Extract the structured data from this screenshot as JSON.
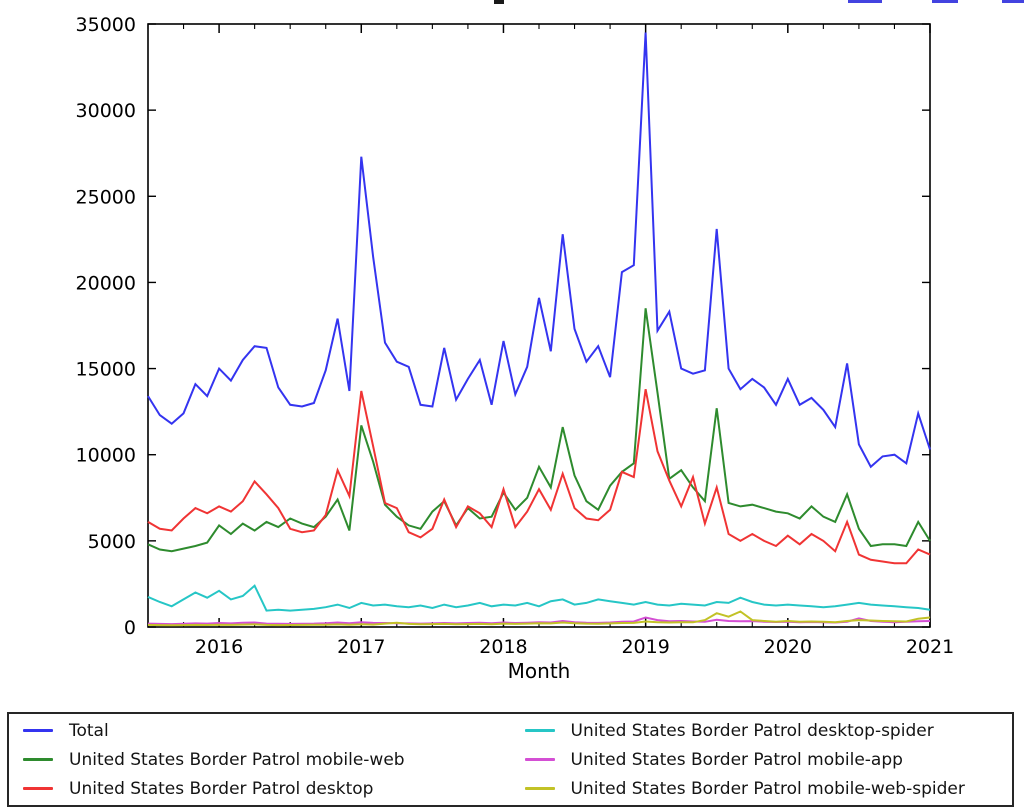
{
  "top_edge": {
    "title_fragment_color": "#1a1a1a",
    "link_fragment_color": "#4343e0"
  },
  "chart_data": {
    "type": "line",
    "title": "",
    "xlabel": "Month",
    "ylabel": "",
    "grid": false,
    "legend_position": "bottom",
    "ylim": [
      0,
      35000
    ],
    "y_ticks": [
      0,
      5000,
      10000,
      15000,
      20000,
      25000,
      30000,
      35000
    ],
    "x_tick_years": [
      2016,
      2017,
      2018,
      2019,
      2020,
      2021
    ],
    "x_start_month": "2015-07",
    "x_end_month": "2021-01",
    "x_months": 67,
    "series": [
      {
        "name": "Total",
        "color": "#3434f0",
        "values": [
          13400,
          12300,
          11800,
          12400,
          14100,
          13400,
          15000,
          14300,
          15500,
          16300,
          16200,
          13900,
          12900,
          12800,
          13000,
          14900,
          17900,
          13700,
          27300,
          21500,
          16500,
          15400,
          15100,
          12900,
          12800,
          16200,
          13200,
          14400,
          15500,
          12900,
          16600,
          13500,
          15100,
          19100,
          16000,
          22800,
          17300,
          15400,
          16300,
          14500,
          20600,
          21000,
          34500,
          17200,
          18300,
          15000,
          14700,
          14900,
          23100,
          15000,
          13800,
          14400,
          13900,
          12900,
          14400,
          12900,
          13300,
          12600,
          11600,
          15300,
          10600,
          9300,
          9900,
          10000,
          9500,
          12400,
          10300
        ]
      },
      {
        "name": "United States Border Patrol mobile-web",
        "color": "#2e8b2e",
        "values": [
          4800,
          4500,
          4400,
          4550,
          4700,
          4900,
          5900,
          5400,
          6000,
          5600,
          6100,
          5800,
          6300,
          6000,
          5800,
          6400,
          7400,
          5600,
          11700,
          9600,
          7100,
          6400,
          5900,
          5700,
          6700,
          7300,
          5900,
          6900,
          6300,
          6400,
          7800,
          6800,
          7500,
          9300,
          8100,
          11600,
          8800,
          7300,
          6800,
          8200,
          9000,
          9500,
          18500,
          13600,
          8600,
          9100,
          8100,
          7300,
          12700,
          7200,
          7000,
          7100,
          6900,
          6700,
          6600,
          6300,
          7000,
          6400,
          6100,
          7700,
          5700,
          4700,
          4800,
          4800,
          4700,
          6100,
          5000
        ]
      },
      {
        "name": "United States Border Patrol desktop",
        "color": "#f03434",
        "values": [
          6100,
          5700,
          5600,
          6300,
          6900,
          6600,
          7000,
          6700,
          7300,
          8450,
          7700,
          6900,
          5700,
          5500,
          5600,
          6500,
          9100,
          7600,
          13700,
          10500,
          7200,
          6900,
          5500,
          5200,
          5700,
          7400,
          5800,
          7000,
          6600,
          5800,
          8000,
          5800,
          6700,
          8000,
          6800,
          8900,
          6900,
          6300,
          6200,
          6800,
          9000,
          8700,
          13800,
          10200,
          8500,
          7000,
          8700,
          6000,
          8100,
          5400,
          5000,
          5400,
          5000,
          4700,
          5300,
          4800,
          5400,
          5000,
          4400,
          6100,
          4200,
          3900,
          3800,
          3700,
          3700,
          4500,
          4200
        ]
      },
      {
        "name": "United States Border Patrol desktop-spider",
        "color": "#26c6c6",
        "values": [
          1750,
          1450,
          1200,
          1600,
          2000,
          1700,
          2100,
          1600,
          1800,
          2400,
          950,
          1000,
          950,
          1000,
          1050,
          1150,
          1300,
          1100,
          1400,
          1250,
          1300,
          1200,
          1150,
          1250,
          1100,
          1300,
          1150,
          1250,
          1400,
          1200,
          1300,
          1250,
          1400,
          1200,
          1500,
          1600,
          1300,
          1400,
          1600,
          1500,
          1400,
          1300,
          1450,
          1300,
          1250,
          1350,
          1300,
          1250,
          1450,
          1400,
          1700,
          1450,
          1300,
          1250,
          1300,
          1250,
          1200,
          1150,
          1200,
          1300,
          1400,
          1300,
          1250,
          1200,
          1150,
          1100,
          1000
        ]
      },
      {
        "name": "United States Border Patrol mobile-app",
        "color": "#d44fd4",
        "values": [
          200,
          180,
          170,
          190,
          210,
          200,
          230,
          210,
          250,
          260,
          200,
          190,
          180,
          190,
          200,
          220,
          260,
          220,
          280,
          240,
          230,
          220,
          210,
          200,
          210,
          230,
          210,
          230,
          250,
          220,
          260,
          230,
          250,
          280,
          260,
          350,
          280,
          250,
          240,
          260,
          300,
          320,
          550,
          400,
          330,
          350,
          320,
          300,
          420,
          350,
          330,
          340,
          310,
          290,
          300,
          280,
          290,
          270,
          260,
          310,
          500,
          350,
          300,
          280,
          300,
          330,
          350
        ]
      },
      {
        "name": "United States Border Patrol mobile-web-spider",
        "color": "#c2c226",
        "values": [
          120,
          110,
          100,
          110,
          120,
          115,
          130,
          120,
          140,
          150,
          120,
          110,
          115,
          120,
          125,
          130,
          150,
          130,
          160,
          140,
          200,
          250,
          180,
          160,
          170,
          180,
          160,
          170,
          180,
          160,
          200,
          180,
          200,
          220,
          210,
          260,
          220,
          200,
          190,
          210,
          230,
          240,
          320,
          280,
          260,
          280,
          270,
          400,
          800,
          600,
          900,
          400,
          350,
          300,
          350,
          300,
          320,
          300,
          280,
          350,
          400,
          380,
          350,
          330,
          320,
          480,
          550
        ]
      }
    ]
  }
}
